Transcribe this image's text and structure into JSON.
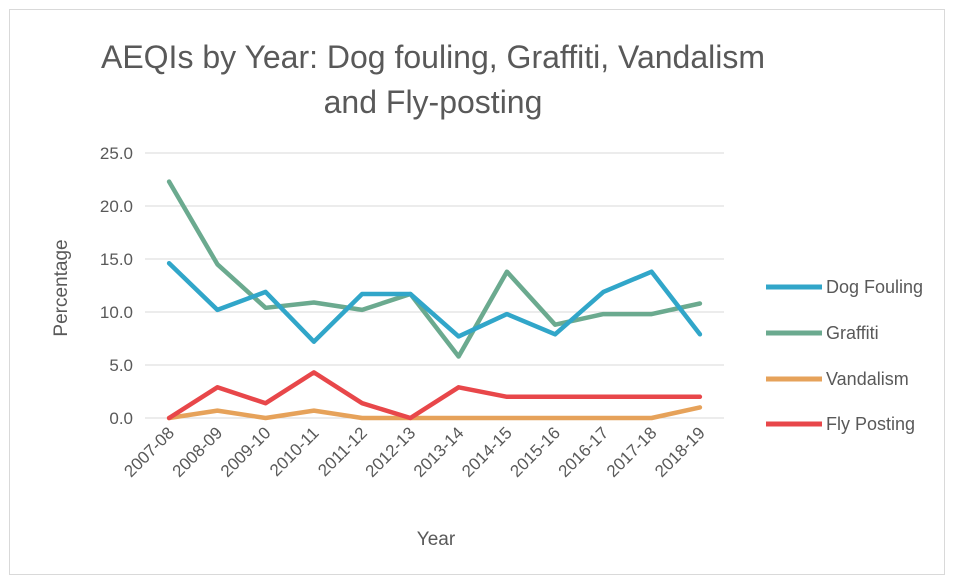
{
  "chart_data": {
    "type": "line",
    "title_lines": [
      "AEQIs by Year: Dog fouling, Graffiti, Vandalism",
      "and Fly-posting"
    ],
    "xlabel": "Year",
    "ylabel": "Percentage",
    "categories": [
      "2007-08",
      "2008-09",
      "2009-10",
      "2010-11",
      "2011-12",
      "2012-13",
      "2013-14",
      "2014-15",
      "2015-16",
      "2016-17",
      "2017-18",
      "2018-19"
    ],
    "ylim": [
      0,
      25
    ],
    "yticks": [
      "0.0",
      "5.0",
      "10.0",
      "15.0",
      "20.0",
      "25.0"
    ],
    "ytick_values": [
      0,
      5,
      10,
      15,
      20,
      25
    ],
    "grid": true,
    "legend_position": "right",
    "series": [
      {
        "name": "Dog Fouling",
        "color": "#31a6c9",
        "values": [
          14.6,
          10.2,
          11.9,
          7.2,
          11.7,
          11.7,
          7.7,
          9.8,
          7.9,
          11.9,
          13.8,
          7.9
        ]
      },
      {
        "name": "Graffiti",
        "color": "#6baa8f",
        "values": [
          22.3,
          14.5,
          10.4,
          10.9,
          10.2,
          11.7,
          5.8,
          13.8,
          8.8,
          9.8,
          9.8,
          10.8
        ]
      },
      {
        "name": "Vandalism",
        "color": "#e6a25a",
        "values": [
          0.0,
          0.7,
          0.0,
          0.7,
          0.0,
          0.0,
          0.0,
          0.0,
          0.0,
          0.0,
          0.0,
          1.0
        ]
      },
      {
        "name": "Fly Posting",
        "color": "#e8474a",
        "values": [
          0.0,
          2.9,
          1.4,
          4.3,
          1.4,
          0.0,
          2.9,
          2.0,
          2.0,
          2.0,
          2.0,
          2.0
        ]
      }
    ]
  }
}
